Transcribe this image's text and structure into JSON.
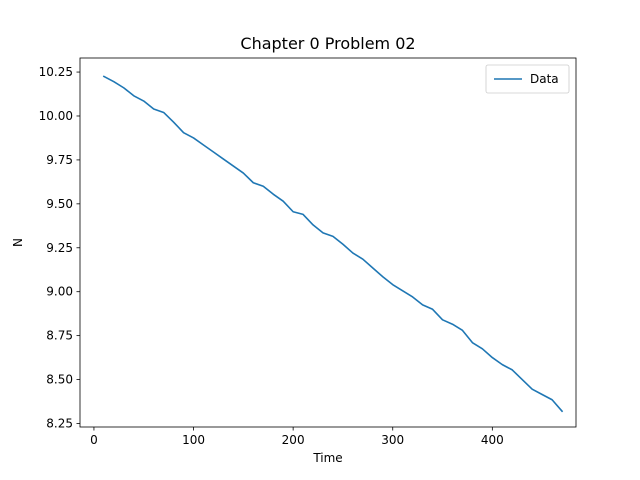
{
  "chart_data": {
    "type": "line",
    "title": "Chapter 0 Problem 02",
    "xlabel": "Time",
    "ylabel": "N",
    "xlim": [
      -14,
      484
    ],
    "ylim": [
      8.23,
      10.33
    ],
    "xticks": [
      0,
      100,
      200,
      300,
      400
    ],
    "xtick_labels": [
      "0",
      "100",
      "200",
      "300",
      "400"
    ],
    "yticks": [
      8.25,
      8.5,
      8.75,
      9.0,
      9.25,
      9.5,
      9.75,
      10.0,
      10.25
    ],
    "ytick_labels": [
      "8.25",
      "8.50",
      "8.75",
      "9.00",
      "9.25",
      "9.50",
      "9.75",
      "10.00",
      "10.25"
    ],
    "grid": false,
    "legend_position": "top-right",
    "series": [
      {
        "name": "Data",
        "color": "#1f77b4",
        "x": [
          10,
          20,
          30,
          40,
          50,
          60,
          70,
          80,
          90,
          100,
          110,
          120,
          130,
          140,
          150,
          160,
          170,
          180,
          190,
          200,
          210,
          220,
          230,
          240,
          250,
          260,
          270,
          280,
          290,
          300,
          310,
          320,
          330,
          340,
          350,
          360,
          370,
          380,
          390,
          400,
          410,
          420,
          430,
          440,
          450,
          460,
          470
        ],
        "y": [
          10.225,
          10.195,
          10.16,
          10.115,
          10.085,
          10.04,
          10.02,
          9.965,
          9.905,
          9.875,
          9.835,
          9.795,
          9.755,
          9.715,
          9.675,
          9.62,
          9.6,
          9.555,
          9.515,
          9.455,
          9.44,
          9.38,
          9.335,
          9.315,
          9.27,
          9.22,
          9.185,
          9.135,
          9.085,
          9.04,
          9.005,
          8.97,
          8.925,
          8.9,
          8.84,
          8.815,
          8.78,
          8.71,
          8.675,
          8.625,
          8.585,
          8.555,
          8.5,
          8.445,
          8.415,
          8.385,
          8.32
        ]
      }
    ]
  }
}
